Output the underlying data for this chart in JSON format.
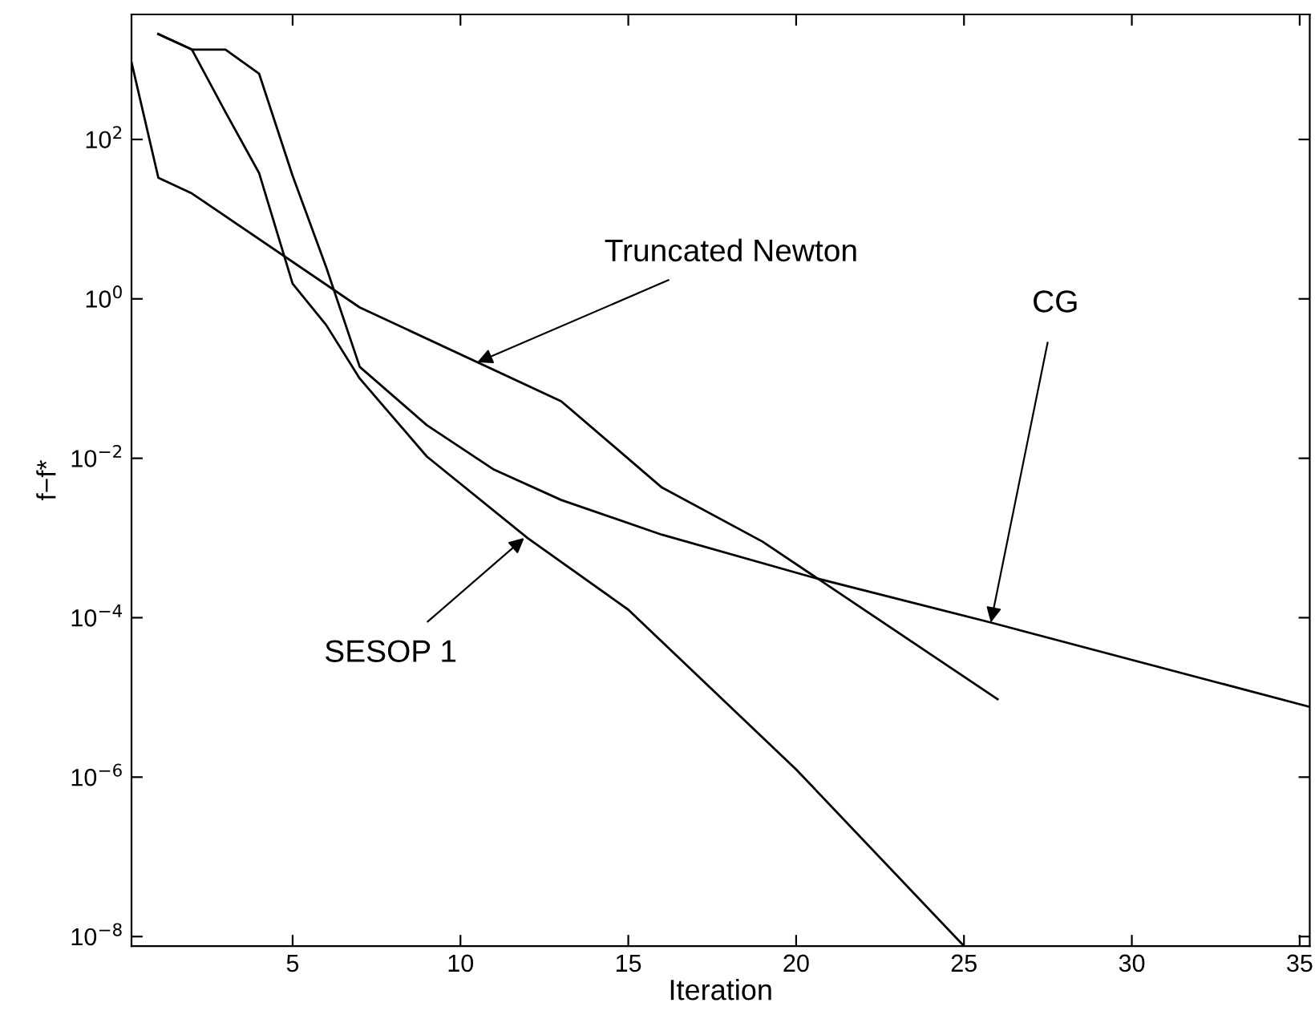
{
  "chart_data": {
    "type": "line",
    "xlabel": "Iteration",
    "ylabel": "f−f*",
    "log": "y",
    "grid": false,
    "legend": false,
    "marker": "none",
    "line_style": "solid",
    "xlim": [
      0.2,
      35.3
    ],
    "xticks": [
      5,
      10,
      15,
      20,
      25,
      30,
      35
    ],
    "ylim": [
      7.6e-09,
      3700
    ],
    "yticks": [
      {
        "value": 1e-08,
        "label": "10$^{−8}$"
      },
      {
        "value": 1e-06,
        "label": "10$^{−6}$"
      },
      {
        "value": 0.0001,
        "label": "10$^{−4}$"
      },
      {
        "value": 0.01,
        "label": "10$^{−2}$"
      },
      {
        "value": 1,
        "label": "10$^{0}$"
      },
      {
        "value": 100,
        "label": "10$^{2}$"
      }
    ],
    "series": [
      {
        "color": "#000000",
        "x": [
          0.2,
          1,
          2,
          7,
          13,
          16,
          19,
          26
        ],
        "values": [
          930,
          33,
          21,
          0.78,
          0.052,
          0.0043,
          0.0009,
          9.5e-06
        ]
      },
      {
        "color": "#000000",
        "x": [
          1,
          2,
          3,
          4,
          5,
          6,
          7,
          9,
          11,
          13,
          16,
          20.5,
          25.8,
          35.3
        ],
        "values": [
          2100,
          1340,
          1340,
          670,
          35,
          2.5,
          0.14,
          0.026,
          0.0072,
          0.003,
          0.0011,
          0.00032,
          8.7e-05,
          7.6e-06
        ]
      },
      {
        "color": "#000000",
        "x": [
          1,
          2,
          3,
          4,
          5,
          6,
          7,
          9,
          12,
          15,
          20,
          25
        ],
        "values": [
          2100,
          1340,
          220,
          38,
          1.55,
          0.47,
          0.1,
          0.0105,
          0.001,
          0.000126,
          1.25e-06,
          7.6e-09
        ]
      }
    ],
    "annotations": [
      {
        "text": "Truncated Newton",
        "x": 10.5,
        "y": 0.16
      },
      {
        "text": "CG",
        "x": 25.8,
        "y": 8.7e-05
      },
      {
        "text": "SESOP 1",
        "x": 11.9,
        "y": 0.001
      }
    ]
  }
}
